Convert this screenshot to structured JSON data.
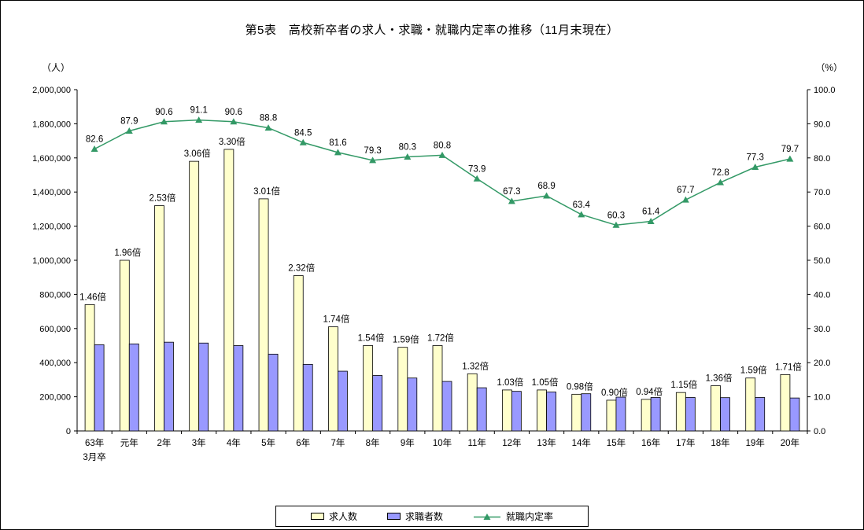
{
  "title": "第5表　高校新卒者の求人・求職・就職内定率の推移（11月末現在）",
  "left_axis_unit": "（人）",
  "right_axis_unit": "（%）",
  "chart_data": {
    "type": "bar",
    "subtype": "grouped-bars-with-line-combo",
    "categories": [
      "63年",
      "元年",
      "2年",
      "3年",
      "4年",
      "5年",
      "6年",
      "7年",
      "8年",
      "9年",
      "10年",
      "11年",
      "12年",
      "13年",
      "14年",
      "15年",
      "16年",
      "17年",
      "18年",
      "19年",
      "20年"
    ],
    "first_category_second_line": "3月卒",
    "series": [
      {
        "name": "求人数",
        "type": "bar",
        "axis": "left",
        "color": "#ffffcc",
        "values": [
          740000,
          1000000,
          1320000,
          1580000,
          1650000,
          1360000,
          910000,
          610000,
          500000,
          490000,
          500000,
          335000,
          240000,
          240000,
          215000,
          180000,
          185000,
          225000,
          265000,
          310000,
          330000
        ]
      },
      {
        "name": "求職者数",
        "type": "bar",
        "axis": "left",
        "color": "#9999ff",
        "values": [
          505000,
          510000,
          520000,
          515000,
          500000,
          450000,
          390000,
          350000,
          325000,
          310000,
          290000,
          253000,
          232000,
          228000,
          218000,
          198000,
          196000,
          196000,
          195000,
          196000,
          193000
        ]
      },
      {
        "name": "就職内定率",
        "type": "line",
        "axis": "right",
        "color": "#339966",
        "values": [
          82.6,
          87.9,
          90.6,
          91.1,
          90.6,
          88.8,
          84.5,
          81.6,
          79.3,
          80.3,
          80.8,
          73.9,
          67.3,
          68.9,
          63.4,
          60.3,
          61.4,
          67.7,
          72.8,
          77.3,
          79.7
        ]
      }
    ],
    "bar_labels": [
      "1.46倍",
      "1.96倍",
      "2.53倍",
      "3.06倍",
      "3.30倍",
      "3.01倍",
      "2.32倍",
      "1.74倍",
      "1.54倍",
      "1.59倍",
      "1.72倍",
      "1.32倍",
      "1.03倍",
      "1.05倍",
      "0.98倍",
      "0.90倍",
      "0.94倍",
      "1.15倍",
      "1.36倍",
      "1.59倍",
      "1.71倍"
    ],
    "line_labels": [
      "82.6",
      "87.9",
      "90.6",
      "91.1",
      "90.6",
      "88.8",
      "84.5",
      "81.6",
      "79.3",
      "80.3",
      "80.8",
      "73.9",
      "67.3",
      "68.9",
      "63.4",
      "60.3",
      "61.4",
      "67.7",
      "72.8",
      "77.3",
      "79.7"
    ],
    "left_axis": {
      "min": 0,
      "max": 2000000,
      "step": 200000,
      "tick_labels": [
        "0",
        "200,000",
        "400,000",
        "600,000",
        "800,000",
        "1,000,000",
        "1,200,000",
        "1,400,000",
        "1,600,000",
        "1,800,000",
        "2,000,000"
      ]
    },
    "right_axis": {
      "min": 0,
      "max": 100,
      "step": 10,
      "tick_labels": [
        "0.0",
        "10.0",
        "20.0",
        "30.0",
        "40.0",
        "50.0",
        "60.0",
        "70.0",
        "80.0",
        "90.0",
        "100.0"
      ]
    },
    "grid": false,
    "legend_position": "bottom-center"
  },
  "legend": {
    "items": [
      {
        "label": "求人数"
      },
      {
        "label": "求職者数"
      },
      {
        "label": "就職内定率"
      }
    ]
  }
}
